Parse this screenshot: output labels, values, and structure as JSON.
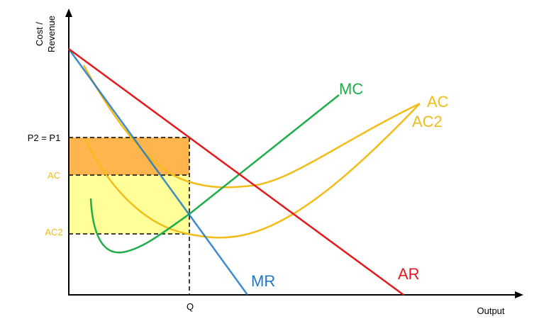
{
  "chart_data": {
    "type": "line",
    "title": "",
    "axes": {
      "ylabel_line1": "Cost /",
      "ylabel_line2": "Revenue",
      "xlabel": "Output"
    },
    "price_label": "P2 = P1",
    "ac_level_label": "AC",
    "ac2_level_label": "AC2",
    "quantity_label": "Q",
    "curves": [
      {
        "name": "AR",
        "color": "#e31a1c"
      },
      {
        "name": "MR",
        "color": "#1f78c1"
      },
      {
        "name": "MC",
        "color": "#1fad4b"
      },
      {
        "name": "AC",
        "color": "#f2bc1a"
      },
      {
        "name": "AC2",
        "color": "#f2bc1a"
      }
    ],
    "shaded_areas": [
      {
        "name": "profit-with-AC",
        "color": "#ffb54d"
      },
      {
        "name": "extra-profit-with-AC2",
        "color": "#ffff99"
      }
    ]
  }
}
